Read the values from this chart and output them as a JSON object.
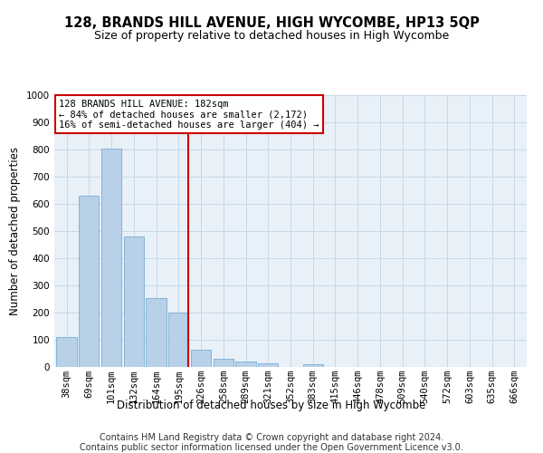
{
  "title": "128, BRANDS HILL AVENUE, HIGH WYCOMBE, HP13 5QP",
  "subtitle": "Size of property relative to detached houses in High Wycombe",
  "xlabel": "Distribution of detached houses by size in High Wycombe",
  "ylabel": "Number of detached properties",
  "bar_labels": [
    "38sqm",
    "69sqm",
    "101sqm",
    "132sqm",
    "164sqm",
    "195sqm",
    "226sqm",
    "258sqm",
    "289sqm",
    "321sqm",
    "352sqm",
    "383sqm",
    "415sqm",
    "446sqm",
    "478sqm",
    "509sqm",
    "540sqm",
    "572sqm",
    "603sqm",
    "635sqm",
    "666sqm"
  ],
  "bar_values": [
    110,
    630,
    805,
    480,
    255,
    200,
    63,
    30,
    20,
    14,
    0,
    10,
    0,
    0,
    0,
    0,
    0,
    0,
    0,
    0,
    0
  ],
  "bar_color": "#b8d0e8",
  "bar_edge_color": "#7aafd4",
  "vline_x_index": 5.42,
  "vline_color": "#cc0000",
  "annotation_text": "128 BRANDS HILL AVENUE: 182sqm\n← 84% of detached houses are smaller (2,172)\n16% of semi-detached houses are larger (404) →",
  "annotation_box_color": "#ffffff",
  "annotation_box_edge": "#cc0000",
  "ylim": [
    0,
    1000
  ],
  "yticks": [
    0,
    100,
    200,
    300,
    400,
    500,
    600,
    700,
    800,
    900,
    1000
  ],
  "grid_color": "#c8d8e8",
  "background_color": "#e8f0f8",
  "footer_line1": "Contains HM Land Registry data © Crown copyright and database right 2024.",
  "footer_line2": "Contains public sector information licensed under the Open Government Licence v3.0.",
  "title_fontsize": 10.5,
  "subtitle_fontsize": 9,
  "axis_label_fontsize": 8.5,
  "tick_fontsize": 7.5,
  "annotation_fontsize": 7.5,
  "footer_fontsize": 7
}
